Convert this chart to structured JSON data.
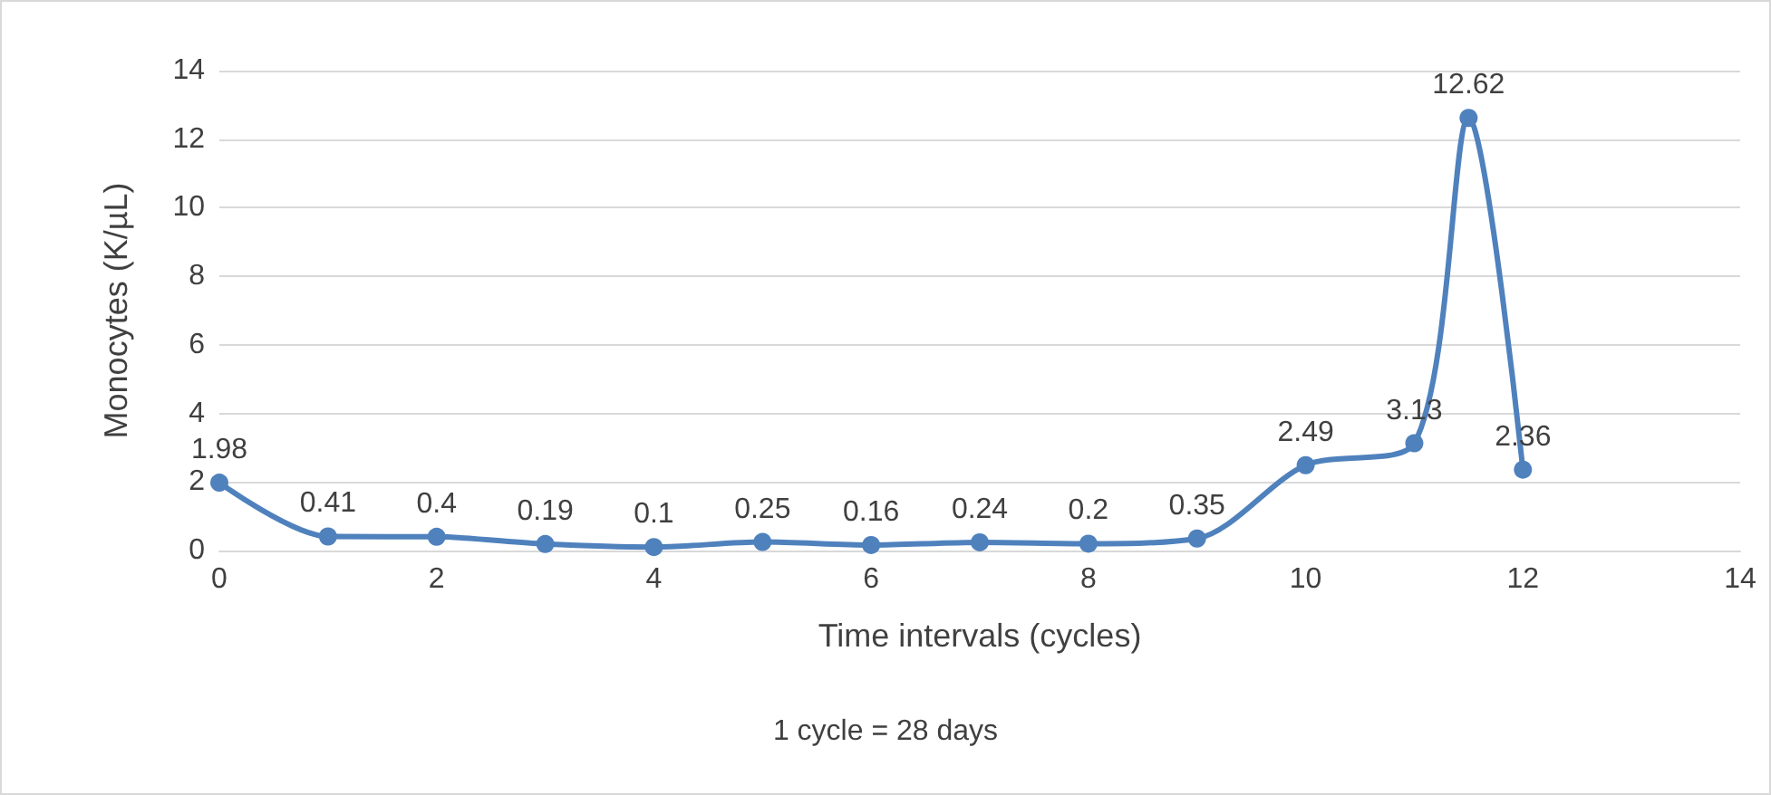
{
  "chart_data": {
    "type": "line",
    "xlabel": "Time intervals (cycles)",
    "ylabel": "Monocytes (K/µL)",
    "annotations": [
      "1 cycle = 28 days"
    ],
    "x": [
      0,
      1,
      2,
      3,
      4,
      5,
      6,
      7,
      8,
      9,
      10,
      11,
      11.5,
      12
    ],
    "series": [
      {
        "color": "#4f81bd",
        "values": [
          1.98,
          0.41,
          0.4,
          0.19,
          0.1,
          0.25,
          0.16,
          0.24,
          0.2,
          0.35,
          2.49,
          3.13,
          12.62,
          2.36
        ]
      }
    ],
    "xlim": [
      0,
      14
    ],
    "xticks": [
      0,
      2,
      4,
      6,
      8,
      10,
      12,
      14
    ],
    "ylim": [
      0,
      14
    ],
    "yticks": [
      0,
      2,
      4,
      6,
      8,
      10,
      12,
      14
    ],
    "grid": "y",
    "marker": "circle",
    "line_style": "solid",
    "data_labels": true
  }
}
